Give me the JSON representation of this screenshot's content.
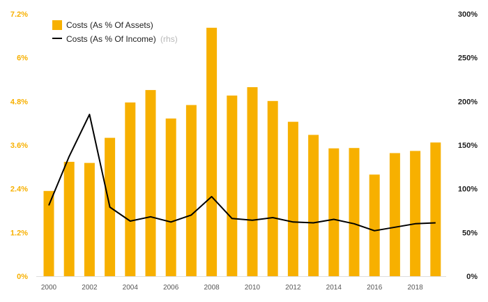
{
  "chart_data": {
    "type": "bar",
    "x": [
      2000,
      2001,
      2002,
      2003,
      2004,
      2005,
      2006,
      2007,
      2008,
      2009,
      2010,
      2011,
      2012,
      2013,
      2014,
      2015,
      2016,
      2017,
      2018,
      2019
    ],
    "x_tick_labels": [
      "2000",
      "2002",
      "2004",
      "2006",
      "2008",
      "2010",
      "2012",
      "2014",
      "2016",
      "2018"
    ],
    "series": [
      {
        "name": "Costs (As % Of Assets)",
        "type": "bar",
        "axis": "left",
        "color": "#F7B000",
        "values": [
          2.34,
          3.14,
          3.11,
          3.8,
          4.77,
          5.11,
          4.33,
          4.7,
          6.82,
          4.96,
          5.19,
          4.81,
          4.24,
          3.88,
          3.51,
          3.52,
          2.79,
          3.38,
          3.44,
          3.67
        ]
      },
      {
        "name": "Costs (As % Of Income)",
        "name_suffix": "(rhs)",
        "type": "line",
        "axis": "right",
        "color": "#000000",
        "values": [
          81,
          137,
          185,
          79,
          63,
          68,
          62,
          70,
          91,
          66,
          64,
          67,
          62,
          61,
          65,
          60,
          52,
          56,
          60,
          61
        ]
      }
    ],
    "y_left": {
      "ylim": [
        0,
        7.2
      ],
      "ticks": [
        0,
        1.2,
        2.4,
        3.6,
        4.8,
        6,
        7.2
      ],
      "tick_labels": [
        "0%",
        "1.2%",
        "2.4%",
        "3.6%",
        "4.8%",
        "6%",
        "7.2%"
      ],
      "tick_color": "#F7B000"
    },
    "y_right": {
      "ylim": [
        0,
        300
      ],
      "ticks": [
        0,
        50,
        100,
        150,
        200,
        250,
        300
      ],
      "tick_labels": [
        "0%",
        "50%",
        "100%",
        "150%",
        "200%",
        "250%",
        "300%"
      ]
    },
    "grid": false,
    "legend_position": "top-left"
  }
}
